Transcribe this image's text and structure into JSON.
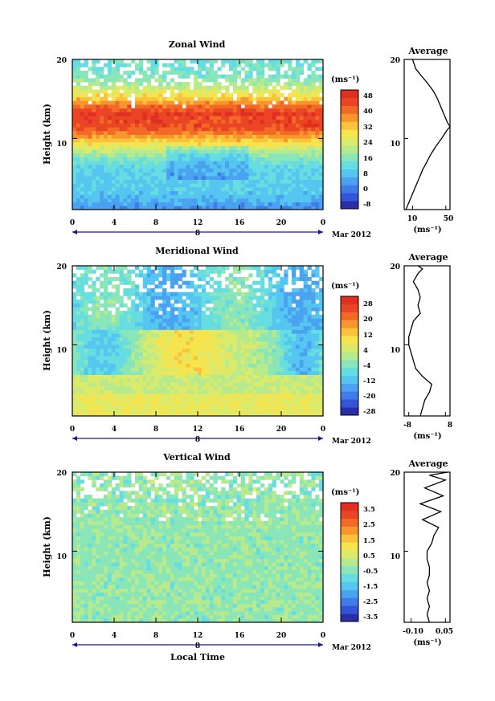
{
  "chart_data": [
    {
      "type": "heatmap",
      "title": "Zonal Wind",
      "ylabel": "Height (km)",
      "x_ticks": [
        "0",
        "4",
        "8",
        "12",
        "16",
        "20",
        "0"
      ],
      "y_ticks": [
        "10",
        "20"
      ],
      "date_label": "8",
      "month_label": "Mar 2012",
      "xlim": [
        0,
        24
      ],
      "ylim": [
        1,
        20
      ],
      "colorbar": {
        "unit_label": "(ms⁻¹)",
        "tick_labels": [
          "48",
          "40",
          "32",
          "24",
          "16",
          "8",
          "0",
          "-8"
        ],
        "tick_values": [
          48,
          40,
          32,
          24,
          16,
          8,
          0,
          -8
        ],
        "range": [
          -12,
          52
        ],
        "colors": [
          "#2a2fa8",
          "#3355d8",
          "#3f7ce8",
          "#4aa2f0",
          "#54c6f0",
          "#66dde0",
          "#8ae6b8",
          "#b6ea8c",
          "#dcea6a",
          "#f6e44e",
          "#fbc23c",
          "#f8962e",
          "#f26a26",
          "#ea4524",
          "#e02e22"
        ]
      },
      "average": {
        "title": "Average",
        "x_ticks": [
          "10",
          "50"
        ],
        "x_tick_values": [
          10,
          50
        ],
        "xlim": [
          0,
          55
        ],
        "unit_label": "(ms⁻¹)",
        "points": [
          [
            2,
            1
          ],
          [
            6,
            2
          ],
          [
            10,
            3
          ],
          [
            14,
            4
          ],
          [
            18,
            5
          ],
          [
            22,
            6
          ],
          [
            27,
            7
          ],
          [
            32,
            8
          ],
          [
            38,
            9
          ],
          [
            45,
            10
          ],
          [
            51,
            11
          ],
          [
            55,
            11.5
          ],
          [
            52,
            12
          ],
          [
            48,
            13
          ],
          [
            44,
            14
          ],
          [
            40,
            15
          ],
          [
            35,
            16
          ],
          [
            28,
            17
          ],
          [
            20,
            18
          ],
          [
            14,
            18.8
          ],
          [
            12,
            19.4
          ],
          [
            10,
            20
          ]
        ]
      },
      "grid": false
    },
    {
      "type": "heatmap",
      "title": "Meridional Wind",
      "ylabel": "Height (km)",
      "x_ticks": [
        "0",
        "4",
        "8",
        "12",
        "16",
        "20",
        "0"
      ],
      "y_ticks": [
        "10",
        "20"
      ],
      "date_label": "8",
      "month_label": "Mar 2012",
      "xlim": [
        0,
        24
      ],
      "ylim": [
        1,
        20
      ],
      "colorbar": {
        "unit_label": "(ms⁻¹)",
        "tick_labels": [
          "28",
          "20",
          "12",
          "4",
          "-4",
          "-12",
          "-20",
          "-28"
        ],
        "tick_values": [
          28,
          20,
          12,
          4,
          -4,
          -12,
          -20,
          -28
        ],
        "range": [
          -32,
          32
        ],
        "colors": [
          "#2a2fa8",
          "#3355d8",
          "#3f7ce8",
          "#4aa2f0",
          "#54c6f0",
          "#66dde0",
          "#8ae6b8",
          "#b6ea8c",
          "#dcea6a",
          "#f6e44e",
          "#fbc23c",
          "#f8962e",
          "#f26a26",
          "#ea4524",
          "#e02e22"
        ]
      },
      "average": {
        "title": "Average",
        "x_ticks": [
          "-8",
          "8"
        ],
        "x_tick_values": [
          -8,
          8
        ],
        "xlim": [
          -10,
          10
        ],
        "unit_label": "(ms⁻¹)",
        "points": [
          [
            -3,
            1
          ],
          [
            -2,
            2
          ],
          [
            -1,
            3
          ],
          [
            1,
            4
          ],
          [
            2,
            5
          ],
          [
            -2,
            6
          ],
          [
            -5,
            7
          ],
          [
            -6,
            8
          ],
          [
            -7,
            9
          ],
          [
            -8,
            10
          ],
          [
            -8,
            11
          ],
          [
            -7,
            12
          ],
          [
            -6,
            13
          ],
          [
            -3,
            14
          ],
          [
            -4,
            15
          ],
          [
            -3,
            16
          ],
          [
            -4,
            17
          ],
          [
            -6,
            18
          ],
          [
            -4,
            19
          ],
          [
            -2,
            19.6
          ],
          [
            -4,
            20
          ]
        ]
      },
      "grid": false
    },
    {
      "type": "heatmap",
      "title": "Vertical Wind",
      "ylabel": "Height (km)",
      "xlabel": "Local Time",
      "x_ticks": [
        "0",
        "4",
        "8",
        "12",
        "16",
        "20",
        "0"
      ],
      "y_ticks": [
        "10",
        "20"
      ],
      "date_label": "8",
      "month_label": "Mar 2012",
      "xlim": [
        0,
        24
      ],
      "ylim": [
        1,
        20
      ],
      "colorbar": {
        "unit_label": "(ms⁻¹)",
        "tick_labels": [
          "3.5",
          "2.5",
          "1.5",
          "0.5",
          "-0.5",
          "-1.5",
          "-2.5",
          "-3.5"
        ],
        "tick_values": [
          3.5,
          2.5,
          1.5,
          0.5,
          -0.5,
          -1.5,
          -2.5,
          -3.5
        ],
        "range": [
          -4,
          4
        ],
        "colors": [
          "#2a2fa8",
          "#3355d8",
          "#3f7ce8",
          "#4aa2f0",
          "#54c6f0",
          "#66dde0",
          "#8ae6b8",
          "#b6ea8c",
          "#dcea6a",
          "#f6e44e",
          "#fbc23c",
          "#f8962e",
          "#f26a26",
          "#ea4524",
          "#e02e22"
        ]
      },
      "average": {
        "title": "Average",
        "x_ticks": [
          "-0.10",
          "0.05"
        ],
        "x_tick_values": [
          -0.1,
          0.05
        ],
        "xlim": [
          -0.13,
          0.07
        ],
        "unit_label": "(ms⁻¹)",
        "points": [
          [
            -0.02,
            1
          ],
          [
            -0.03,
            2
          ],
          [
            -0.02,
            3
          ],
          [
            -0.03,
            4
          ],
          [
            -0.02,
            5
          ],
          [
            -0.03,
            6
          ],
          [
            -0.02,
            7
          ],
          [
            -0.02,
            8
          ],
          [
            -0.03,
            9
          ],
          [
            -0.03,
            10
          ],
          [
            -0.01,
            11
          ],
          [
            0.0,
            12
          ],
          [
            0.02,
            13
          ],
          [
            -0.05,
            14
          ],
          [
            0.03,
            15
          ],
          [
            -0.06,
            16
          ],
          [
            0.04,
            17
          ],
          [
            -0.04,
            18
          ],
          [
            0.05,
            19
          ],
          [
            -0.02,
            19.6
          ],
          [
            0.06,
            20
          ]
        ]
      },
      "grid": false
    }
  ]
}
